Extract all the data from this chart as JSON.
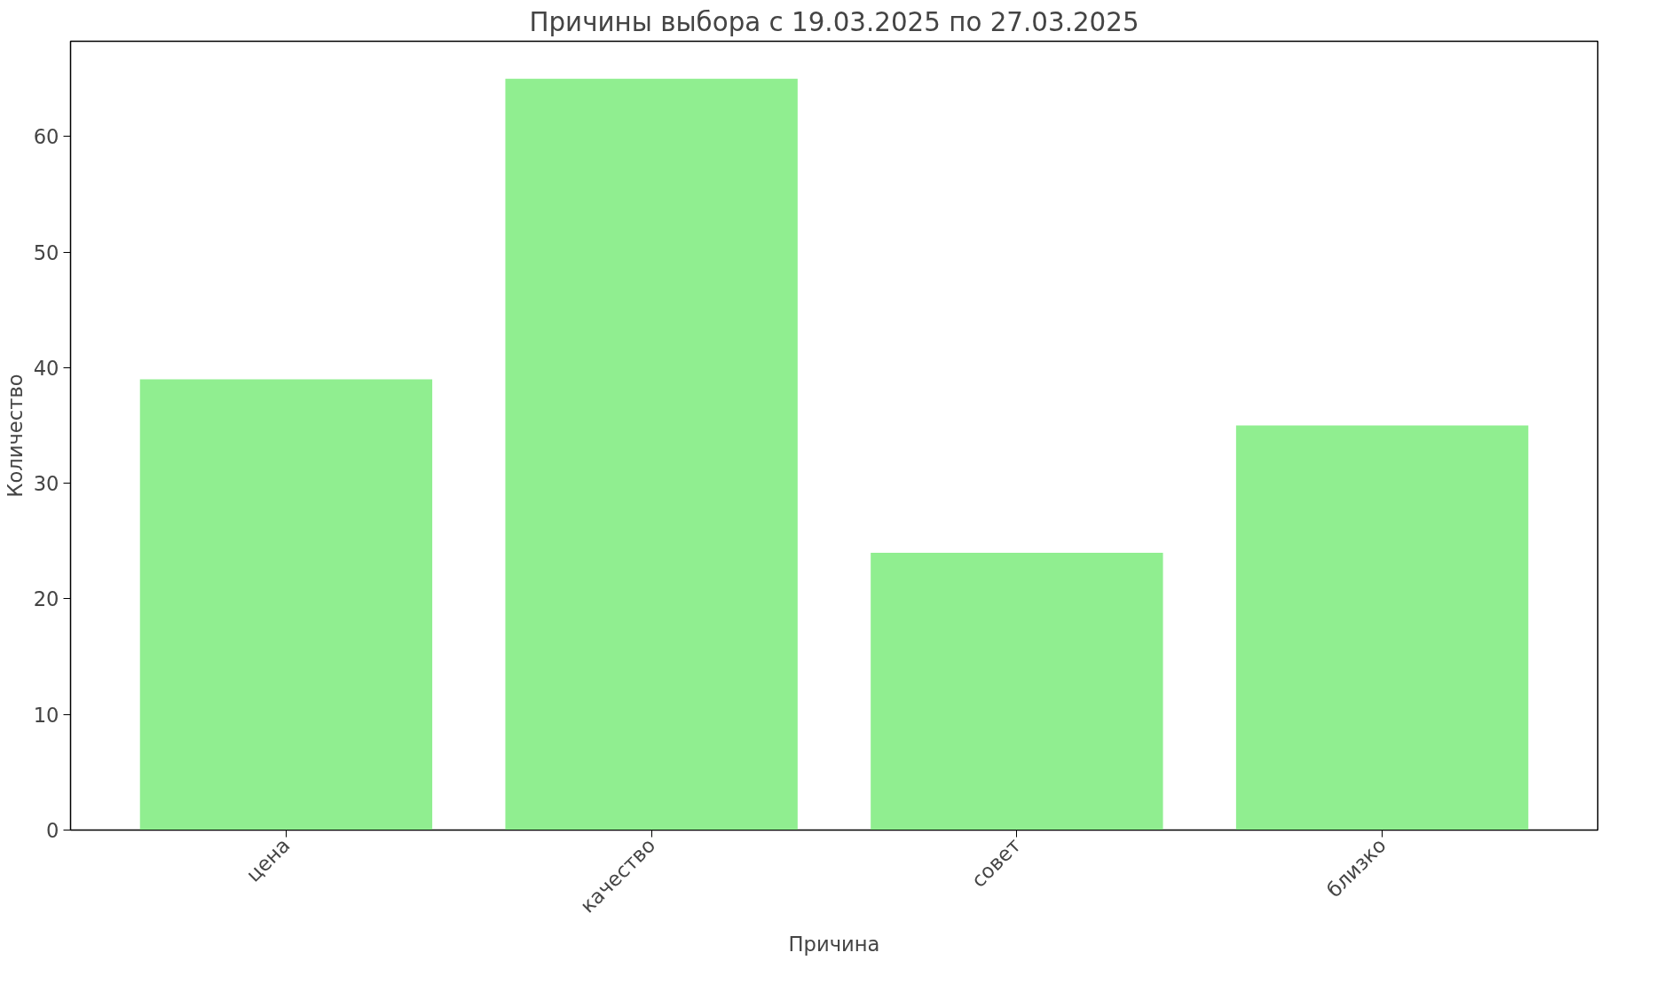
{
  "chart_data": {
    "type": "bar",
    "title": "Причины выбора с 19.03.2025 по 27.03.2025",
    "xlabel": "Причина",
    "ylabel": "Количество",
    "categories": [
      "цена",
      "качество",
      "совет",
      "близко"
    ],
    "values": [
      39,
      65,
      24,
      35
    ],
    "color": "#90ee90",
    "ylim": [
      0,
      68.25
    ],
    "yticks": [
      0,
      10,
      20,
      30,
      40,
      50,
      60
    ],
    "grid": false
  }
}
